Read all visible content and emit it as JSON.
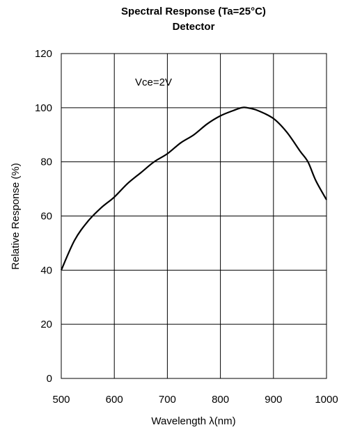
{
  "chart_data": {
    "type": "line",
    "title": "Spectral Response (Ta=25°C)",
    "subtitle": "Detector",
    "xlabel": "Wavelength λ(nm)",
    "ylabel": "Relative Response (%)",
    "annotation": "Vce=2V",
    "xlim": [
      500,
      1000
    ],
    "ylim": [
      0,
      120
    ],
    "xticks": [
      500,
      600,
      700,
      800,
      900,
      1000
    ],
    "yticks": [
      0,
      20,
      40,
      60,
      80,
      100,
      120
    ],
    "grid": true,
    "series": [
      {
        "color": "#000000",
        "x": [
          500,
          525,
          550,
          575,
          600,
          625,
          650,
          675,
          700,
          725,
          750,
          775,
          800,
          825,
          840,
          850,
          870,
          900,
          925,
          950,
          965,
          980,
          1000
        ],
        "y": [
          40,
          51,
          58,
          63,
          67,
          72,
          76,
          80,
          83,
          87,
          90,
          94,
          97,
          99,
          100,
          100,
          99,
          96,
          91,
          84,
          80,
          73,
          66
        ]
      }
    ]
  }
}
